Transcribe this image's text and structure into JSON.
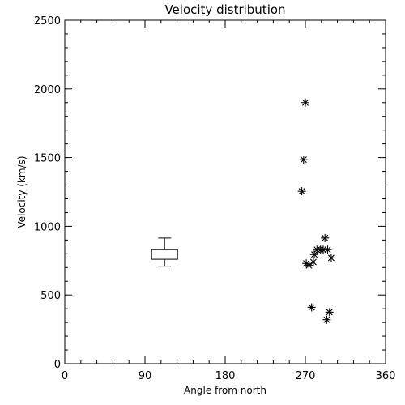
{
  "chart_data": {
    "type": "scatter",
    "title": "Velocity distribution",
    "xlabel": "Angle from north",
    "ylabel": "Velocity (km/s)",
    "xlim": [
      0,
      360
    ],
    "ylim": [
      0,
      2500
    ],
    "xticks": [
      0,
      90,
      180,
      270,
      360
    ],
    "yticks": [
      0,
      500,
      1000,
      1500,
      2000,
      2500
    ],
    "grid": false,
    "points": [
      {
        "x": 270,
        "y": 1900
      },
      {
        "x": 268,
        "y": 1485
      },
      {
        "x": 266,
        "y": 1255
      },
      {
        "x": 292,
        "y": 915
      },
      {
        "x": 283,
        "y": 830
      },
      {
        "x": 287,
        "y": 830
      },
      {
        "x": 290,
        "y": 830
      },
      {
        "x": 295,
        "y": 830
      },
      {
        "x": 280,
        "y": 795
      },
      {
        "x": 299,
        "y": 770
      },
      {
        "x": 279,
        "y": 740
      },
      {
        "x": 271,
        "y": 730
      },
      {
        "x": 274,
        "y": 715
      },
      {
        "x": 277,
        "y": 410
      },
      {
        "x": 297,
        "y": 375
      },
      {
        "x": 294,
        "y": 320
      }
    ],
    "boxplot": {
      "x": 112,
      "whisker_low": 710,
      "q1": 760,
      "q3": 830,
      "whisker_high": 915
    }
  }
}
